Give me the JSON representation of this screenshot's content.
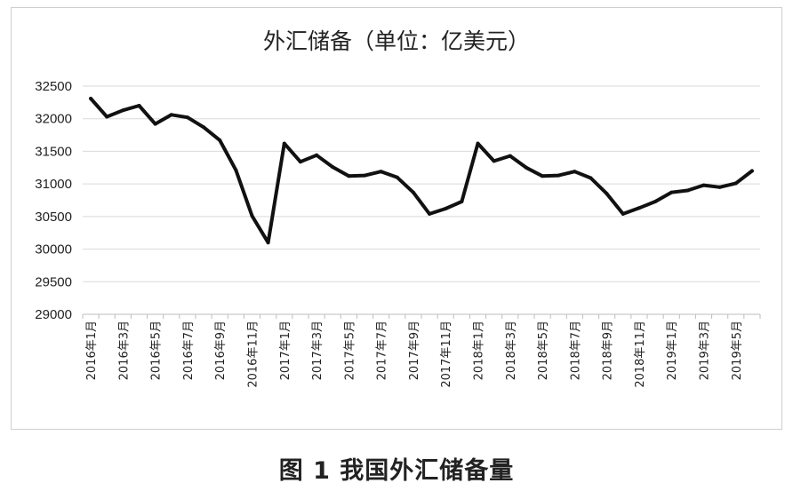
{
  "caption": "图 1  我国外汇储备量",
  "chart_data": {
    "type": "line",
    "title": "外汇储备（单位：亿美元）",
    "ylim": [
      29000,
      32500
    ],
    "yticks": [
      29000,
      29500,
      30000,
      30500,
      31000,
      31500,
      32000,
      32500
    ],
    "grid": true,
    "legend": "none",
    "line_color": "#111111",
    "xtick_labels": [
      "2016年1月",
      "2016年3月",
      "2016年5月",
      "2016年7月",
      "2016年9月",
      "2016年11月",
      "2017年1月",
      "2017年3月",
      "2017年5月",
      "2017年7月",
      "2017年9月",
      "2017年11月",
      "2018年1月",
      "2018年3月",
      "2018年5月",
      "2018年7月",
      "2018年9月",
      "2018年11月",
      "2019年1月",
      "2019年3月",
      "2019年5月"
    ],
    "series": [
      {
        "x": [
          "2016-01",
          "2016-02",
          "2016-03",
          "2016-04",
          "2016-05",
          "2016-06",
          "2016-07",
          "2016-08",
          "2016-09",
          "2016-10",
          "2016-11",
          "2016-12",
          "2017-01",
          "2017-02",
          "2017-03",
          "2017-04",
          "2017-05",
          "2017-06",
          "2017-07",
          "2017-08",
          "2017-09",
          "2017-10",
          "2017-11",
          "2017-12",
          "2018-01",
          "2018-02",
          "2018-03",
          "2018-04",
          "2018-05",
          "2018-06",
          "2018-07",
          "2018-08",
          "2018-09",
          "2018-10",
          "2018-11",
          "2018-12",
          "2019-01",
          "2019-02",
          "2019-03",
          "2019-04",
          "2019-05",
          "2019-06"
        ],
        "values": [
          32310,
          32030,
          32130,
          32200,
          31920,
          32060,
          32020,
          31870,
          31670,
          31210,
          30510,
          30100,
          31620,
          31340,
          31440,
          31260,
          31120,
          31130,
          31190,
          31100,
          30870,
          30540,
          30620,
          30730,
          31620,
          31350,
          31430,
          31250,
          31120,
          31130,
          31190,
          31090,
          30850,
          30540,
          30630,
          30730,
          30870,
          30900,
          30980,
          30950,
          31010,
          31200
        ]
      }
    ]
  }
}
